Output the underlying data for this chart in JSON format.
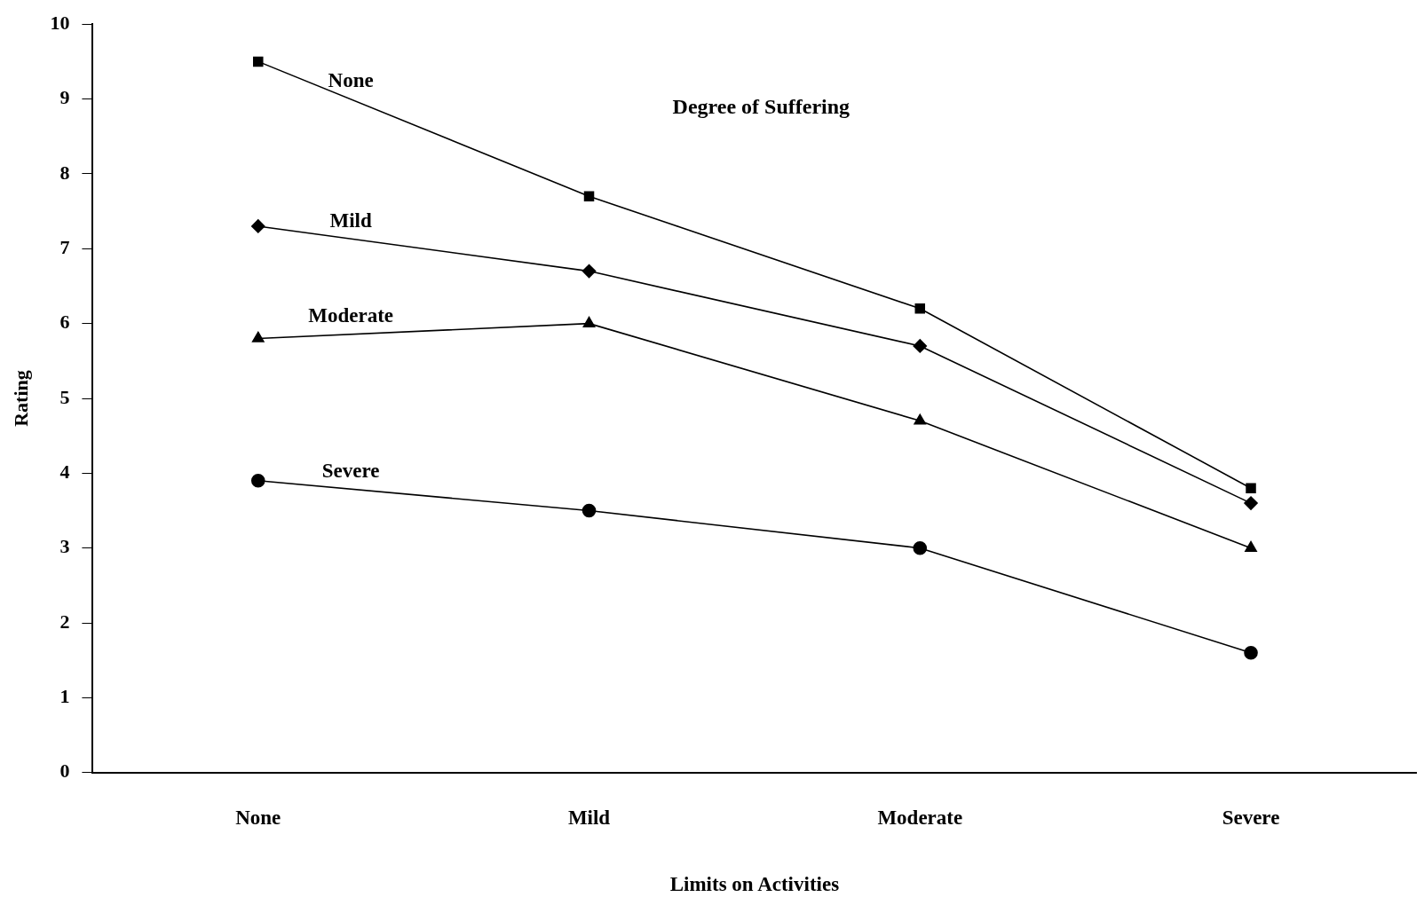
{
  "chart_data": {
    "type": "line",
    "xlabel": "Limits on Activities",
    "ylabel": "Rating",
    "legend_title": "Degree of Suffering",
    "categories": [
      "None",
      "Mild",
      "Moderate",
      "Severe"
    ],
    "ylim": [
      0,
      10
    ],
    "yticks": [
      0,
      1,
      2,
      3,
      4,
      5,
      6,
      7,
      8,
      9,
      10
    ],
    "grid": false,
    "legend": false,
    "line_style": "solid",
    "series": [
      {
        "name": "None",
        "color": "#000000",
        "marker": "square",
        "values": [
          9.5,
          7.7,
          6.2,
          3.8
        ]
      },
      {
        "name": "Mild",
        "color": "#000000",
        "marker": "diamond",
        "values": [
          7.3,
          6.7,
          5.7,
          3.6
        ]
      },
      {
        "name": "Moderate",
        "color": "#000000",
        "marker": "triangle",
        "values": [
          5.8,
          6.0,
          4.7,
          3.0
        ]
      },
      {
        "name": "Severe",
        "color": "#000000",
        "marker": "circle",
        "values": [
          3.9,
          3.5,
          3.0,
          1.6
        ]
      }
    ]
  }
}
